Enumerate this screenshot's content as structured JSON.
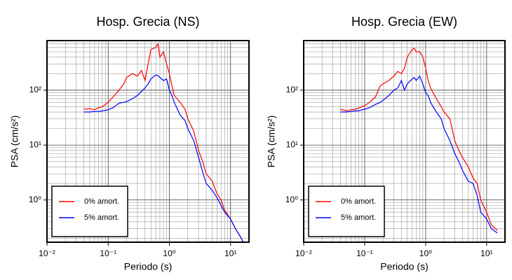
{
  "chart_data": [
    {
      "type": "line",
      "title": "Hosp. Grecia (NS)",
      "xlabel": "Periodo (s)",
      "ylabel": "PSA (cm/s²)",
      "log_x": true,
      "log_y": true,
      "grid": true,
      "legend": "lower left",
      "xlim": [
        0.01,
        20
      ],
      "ylim": [
        0.17,
        800
      ],
      "xticks": [
        {
          "value": 0.01,
          "label": "10⁻²"
        },
        {
          "value": 0.1,
          "label": "10⁻¹"
        },
        {
          "value": 1,
          "label": "10⁰"
        },
        {
          "value": 10,
          "label": "10¹"
        }
      ],
      "yticks": [
        {
          "value": 1,
          "label": "10⁰"
        },
        {
          "value": 10,
          "label": "10¹"
        },
        {
          "value": 100,
          "label": "10²"
        }
      ],
      "x": [
        0.04,
        0.05,
        0.06,
        0.07,
        0.08,
        0.09,
        0.1,
        0.12,
        0.15,
        0.18,
        0.2,
        0.25,
        0.3,
        0.35,
        0.4,
        0.45,
        0.5,
        0.6,
        0.65,
        0.7,
        0.8,
        0.9,
        1.0,
        1.1,
        1.2,
        1.5,
        1.8,
        2,
        2.5,
        3,
        3.5,
        4,
        5,
        6,
        7,
        8,
        10,
        12,
        15,
        17
      ],
      "series": [
        {
          "name": "0% amort.",
          "color": "#ff0000",
          "values": [
            45,
            46,
            44,
            48,
            50,
            55,
            60,
            75,
            100,
            130,
            170,
            200,
            180,
            230,
            150,
            300,
            550,
            600,
            700,
            400,
            500,
            300,
            200,
            120,
            80,
            60,
            45,
            30,
            18,
            8,
            5,
            3,
            2.2,
            1.3,
            1.0,
            0.65,
            0.45,
            0.3,
            0.2,
            0.15
          ]
        },
        {
          "name": "5% amort.",
          "color": "#0000ff",
          "values": [
            40,
            40,
            41,
            41,
            42,
            43,
            44,
            48,
            58,
            60,
            62,
            70,
            80,
            95,
            110,
            130,
            160,
            190,
            185,
            170,
            150,
            160,
            100,
            80,
            60,
            35,
            28,
            20,
            12,
            6,
            3.2,
            2,
            1.5,
            1.1,
            0.8,
            0.6,
            0.45,
            0.3,
            0.2,
            0.15
          ]
        }
      ]
    },
    {
      "type": "line",
      "title": "Hosp. Grecia (EW)",
      "xlabel": "Periodo (s)",
      "ylabel": "PSA (cm/s²)",
      "log_x": true,
      "log_y": true,
      "grid": true,
      "legend": "lower left",
      "xlim": [
        0.01,
        20
      ],
      "ylim": [
        0.17,
        800
      ],
      "xticks": [
        {
          "value": 0.01,
          "label": "10⁻²"
        },
        {
          "value": 0.1,
          "label": "10⁻¹"
        },
        {
          "value": 1,
          "label": "10⁰"
        },
        {
          "value": 10,
          "label": "10¹"
        }
      ],
      "yticks": [
        {
          "value": 1,
          "label": "10⁰"
        },
        {
          "value": 10,
          "label": "10¹"
        },
        {
          "value": 100,
          "label": "10²"
        }
      ],
      "x": [
        0.04,
        0.05,
        0.06,
        0.07,
        0.08,
        0.09,
        0.1,
        0.12,
        0.15,
        0.18,
        0.2,
        0.25,
        0.3,
        0.35,
        0.4,
        0.45,
        0.5,
        0.6,
        0.65,
        0.7,
        0.8,
        0.9,
        1.0,
        1.1,
        1.2,
        1.5,
        1.8,
        2,
        2.5,
        3,
        3.5,
        4,
        5,
        6,
        7,
        8,
        10,
        12,
        15
      ],
      "series": [
        {
          "name": "0% amort.",
          "color": "#ff0000",
          "values": [
            45,
            42,
            44,
            45,
            47,
            50,
            52,
            60,
            75,
            120,
            130,
            150,
            180,
            220,
            200,
            250,
            400,
            550,
            580,
            500,
            500,
            400,
            250,
            150,
            110,
            70,
            50,
            40,
            30,
            12,
            8,
            6,
            4.0,
            2.5,
            2.0,
            1.0,
            0.6,
            0.35,
            0.28
          ]
        },
        {
          "name": "5% amort.",
          "color": "#0000ff",
          "values": [
            40,
            40,
            41,
            42,
            42,
            44,
            45,
            48,
            55,
            60,
            65,
            80,
            100,
            110,
            150,
            100,
            130,
            160,
            170,
            150,
            180,
            130,
            90,
            80,
            60,
            40,
            30,
            20,
            12,
            7,
            5,
            3.5,
            2.2,
            2.0,
            1.2,
            0.6,
            0.45,
            0.3,
            0.25
          ]
        }
      ]
    }
  ]
}
